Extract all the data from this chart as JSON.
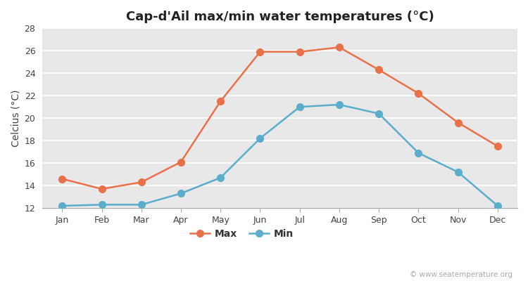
{
  "title": "Cap-d'Ail max/min water temperatures (°C)",
  "ylabel": "Celcius (°C)",
  "months": [
    "Jan",
    "Feb",
    "Mar",
    "Apr",
    "May",
    "Jun",
    "Jul",
    "Aug",
    "Sep",
    "Oct",
    "Nov",
    "Dec"
  ],
  "max_values": [
    14.6,
    13.7,
    14.3,
    16.1,
    21.5,
    25.9,
    25.9,
    26.3,
    24.3,
    22.2,
    19.6,
    17.5
  ],
  "min_values": [
    12.2,
    12.3,
    12.3,
    13.3,
    14.7,
    18.2,
    21.0,
    21.2,
    20.4,
    16.9,
    15.2,
    12.2
  ],
  "max_color": "#e8714a",
  "min_color": "#5aadcb",
  "figure_bg_color": "#ffffff",
  "plot_bg_color": "#e8e8e8",
  "grid_color": "#ffffff",
  "spine_color": "#aaaaaa",
  "ylim": [
    12,
    28
  ],
  "yticks": [
    12,
    14,
    16,
    18,
    20,
    22,
    24,
    26,
    28
  ],
  "legend_labels": [
    "Max",
    "Min"
  ],
  "watermark": "© www.seatemperature.org",
  "marker": "o",
  "markersize": 7,
  "linewidth": 1.8,
  "title_fontsize": 13,
  "axis_label_fontsize": 10,
  "tick_fontsize": 9,
  "legend_fontsize": 10
}
